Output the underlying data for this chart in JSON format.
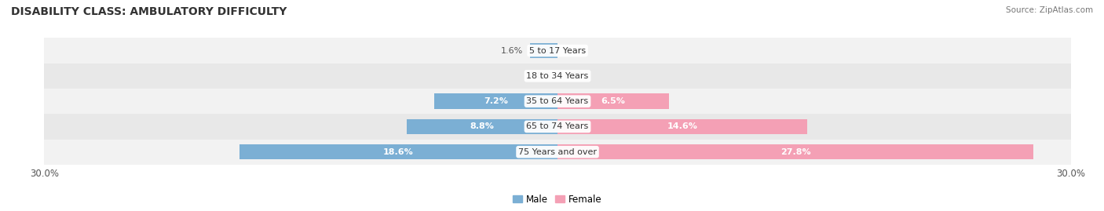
{
  "title": "DISABILITY CLASS: AMBULATORY DIFFICULTY",
  "source": "Source: ZipAtlas.com",
  "categories": [
    "5 to 17 Years",
    "18 to 34 Years",
    "35 to 64 Years",
    "65 to 74 Years",
    "75 Years and over"
  ],
  "male_values": [
    1.6,
    0.0,
    7.2,
    8.8,
    18.6
  ],
  "female_values": [
    0.0,
    0.0,
    6.5,
    14.6,
    27.8
  ],
  "max_val": 30.0,
  "male_color": "#7bafd4",
  "female_color": "#f4a0b5",
  "bar_height": 0.6,
  "row_colors": [
    "#f2f2f2",
    "#e8e8e8"
  ],
  "title_fontsize": 10,
  "label_fontsize": 8,
  "axis_label_fontsize": 8.5,
  "category_fontsize": 8,
  "legend_fontsize": 8.5,
  "inside_label_threshold": 2.5
}
